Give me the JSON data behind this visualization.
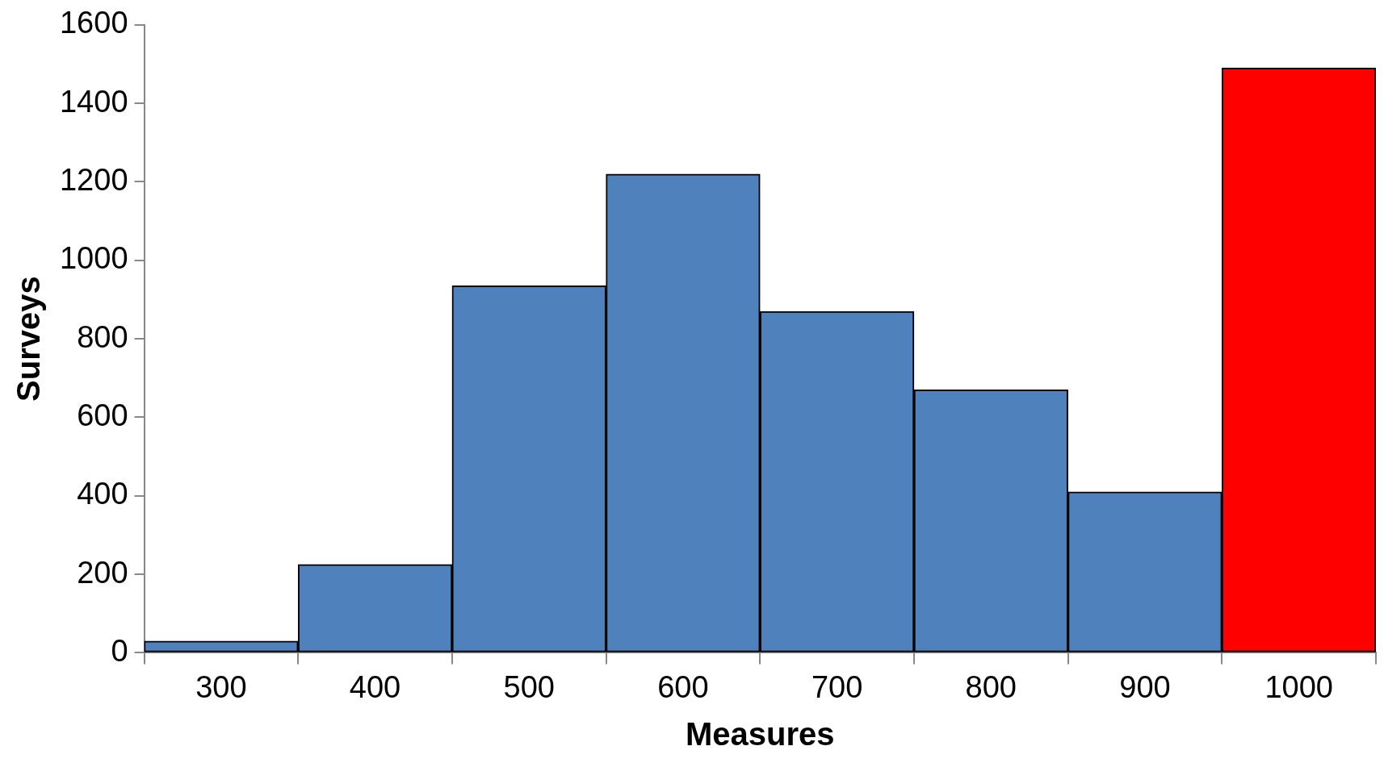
{
  "chart_data": {
    "type": "bar",
    "xlabel": "Measures",
    "ylabel": "Surveys",
    "categories": [
      "300",
      "400",
      "500",
      "600",
      "700",
      "800",
      "900",
      "1000"
    ],
    "values": [
      30,
      225,
      935,
      1220,
      870,
      670,
      410,
      1490
    ],
    "colors": [
      "#4f81bd",
      "#4f81bd",
      "#4f81bd",
      "#4f81bd",
      "#4f81bd",
      "#4f81bd",
      "#4f81bd",
      "#ff0000"
    ],
    "ylim": [
      0,
      1600
    ],
    "yticks": [
      0,
      200,
      400,
      600,
      800,
      1000,
      1200,
      1400,
      1600
    ],
    "grid": false,
    "legend": false
  }
}
